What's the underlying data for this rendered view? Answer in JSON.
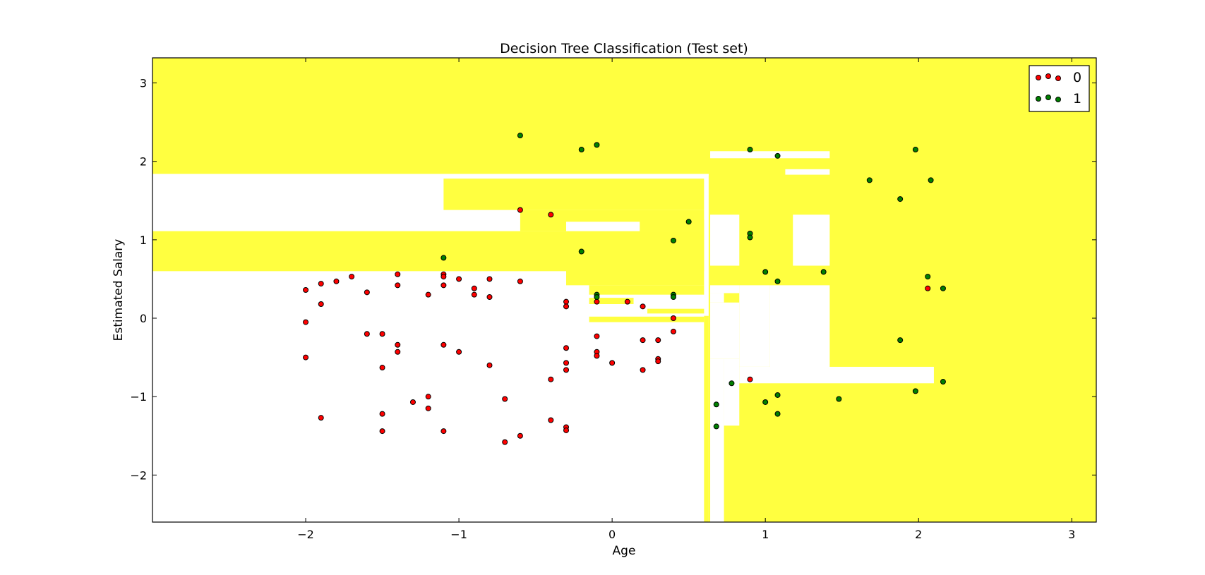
{
  "chart_data": {
    "type": "scatter",
    "title": "Decision Tree Classification (Test set)",
    "xlabel": "Age",
    "ylabel": "Estimated Salary",
    "xlim": [
      -3.0,
      3.16
    ],
    "ylim": [
      -2.6,
      3.32
    ],
    "xticks": [
      -2,
      -1,
      0,
      1,
      2,
      3
    ],
    "xtick_labels": [
      "−2",
      "−1",
      "0",
      "1",
      "2",
      "3"
    ],
    "yticks": [
      -2,
      -1,
      0,
      1,
      2,
      3
    ],
    "ytick_labels": [
      "−2",
      "−1",
      "0",
      "1",
      "2",
      "3"
    ],
    "grid": false,
    "legend_position": "top-right",
    "background_regions": {
      "class_0_color": "#ffffff",
      "class_1_color": "#ffff40",
      "class_1_rects": [
        [
          -3.0,
          3.16,
          1.84,
          3.32
        ],
        [
          -3.0,
          0.6,
          0.6,
          1.11
        ],
        [
          -1.1,
          0.6,
          1.38,
          1.78
        ],
        [
          -0.6,
          0.6,
          1.11,
          1.38
        ],
        [
          -0.3,
          0.6,
          1.11,
          1.26
        ],
        [
          -0.3,
          0.6,
          0.42,
          1.11
        ],
        [
          -0.15,
          0.6,
          0.3,
          0.42
        ],
        [
          -0.15,
          0.14,
          0.18,
          0.26
        ],
        [
          0.23,
          0.6,
          0.06,
          0.12
        ],
        [
          -0.15,
          0.6,
          -0.05,
          0.02
        ],
        [
          0.6,
          3.16,
          1.84,
          2.2
        ],
        [
          0.63,
          3.16,
          -2.6,
          1.84
        ],
        [
          0.6,
          0.63,
          -2.6,
          0.03
        ]
      ],
      "class_0_rects": [
        [
          -3.0,
          0.63,
          1.82,
          1.84
        ],
        [
          -0.3,
          0.18,
          1.11,
          1.23
        ],
        [
          0.64,
          1.42,
          2.04,
          2.13
        ],
        [
          1.13,
          1.42,
          1.83,
          1.9
        ],
        [
          0.64,
          0.83,
          0.67,
          1.32
        ],
        [
          1.18,
          1.42,
          0.67,
          1.32
        ],
        [
          0.64,
          0.83,
          0.32,
          0.42
        ],
        [
          0.64,
          0.73,
          0.2,
          0.32
        ],
        [
          0.64,
          0.83,
          -0.52,
          0.2
        ],
        [
          0.83,
          1.03,
          -0.62,
          0.42
        ],
        [
          1.03,
          1.42,
          -0.72,
          0.42
        ],
        [
          0.83,
          2.1,
          -0.83,
          -0.62
        ],
        [
          0.64,
          0.73,
          -2.6,
          -0.52
        ],
        [
          0.73,
          0.83,
          -1.37,
          -0.52
        ]
      ]
    },
    "series": [
      {
        "name": "0",
        "color": "#ff0000",
        "points": [
          [
            -2.0,
            0.36
          ],
          [
            -2.0,
            -0.05
          ],
          [
            -2.0,
            -0.5
          ],
          [
            -1.9,
            0.44
          ],
          [
            -1.9,
            0.18
          ],
          [
            -1.9,
            -1.27
          ],
          [
            -1.8,
            0.47
          ],
          [
            -1.7,
            0.53
          ],
          [
            -1.6,
            0.33
          ],
          [
            -1.6,
            -0.2
          ],
          [
            -1.5,
            -0.2
          ],
          [
            -1.5,
            -0.63
          ],
          [
            -1.5,
            -1.22
          ],
          [
            -1.5,
            -1.44
          ],
          [
            -1.4,
            0.56
          ],
          [
            -1.4,
            0.42
          ],
          [
            -1.4,
            -0.34
          ],
          [
            -1.4,
            -0.43
          ],
          [
            -1.3,
            -1.07
          ],
          [
            -1.2,
            0.3
          ],
          [
            -1.2,
            -1.0
          ],
          [
            -1.2,
            -1.15
          ],
          [
            -1.1,
            0.56
          ],
          [
            -1.1,
            0.53
          ],
          [
            -1.1,
            0.42
          ],
          [
            -1.1,
            -0.34
          ],
          [
            -1.1,
            -1.44
          ],
          [
            -1.0,
            0.5
          ],
          [
            -1.0,
            -0.43
          ],
          [
            -0.9,
            0.38
          ],
          [
            -0.9,
            0.3
          ],
          [
            -0.8,
            0.5
          ],
          [
            -0.8,
            0.27
          ],
          [
            -0.8,
            -0.6
          ],
          [
            -0.7,
            -1.03
          ],
          [
            -0.7,
            -1.58
          ],
          [
            -0.6,
            1.38
          ],
          [
            -0.6,
            0.47
          ],
          [
            -0.6,
            -1.5
          ],
          [
            -0.4,
            1.32
          ],
          [
            -0.4,
            -0.78
          ],
          [
            -0.4,
            -1.3
          ],
          [
            -0.3,
            0.21
          ],
          [
            -0.3,
            0.15
          ],
          [
            -0.3,
            -0.38
          ],
          [
            -0.3,
            -0.57
          ],
          [
            -0.3,
            -0.66
          ],
          [
            -0.3,
            -1.39
          ],
          [
            -0.3,
            -1.43
          ],
          [
            -0.1,
            0.21
          ],
          [
            -0.1,
            -0.23
          ],
          [
            -0.1,
            -0.43
          ],
          [
            -0.1,
            -0.48
          ],
          [
            0.0,
            -0.57
          ],
          [
            0.1,
            0.21
          ],
          [
            0.2,
            0.15
          ],
          [
            0.2,
            -0.28
          ],
          [
            0.2,
            -0.66
          ],
          [
            0.3,
            -0.28
          ],
          [
            0.3,
            -0.52
          ],
          [
            0.3,
            -0.55
          ],
          [
            0.4,
            0.0
          ],
          [
            0.4,
            -0.17
          ],
          [
            0.9,
            -0.78
          ],
          [
            2.06,
            0.38
          ]
        ]
      },
      {
        "name": "1",
        "color": "#008000",
        "points": [
          [
            -0.6,
            2.33
          ],
          [
            -0.2,
            2.15
          ],
          [
            -0.1,
            2.21
          ],
          [
            -0.2,
            0.85
          ],
          [
            -1.1,
            0.77
          ],
          [
            -0.1,
            0.3
          ],
          [
            -0.1,
            0.27
          ],
          [
            0.4,
            0.99
          ],
          [
            0.4,
            0.3
          ],
          [
            0.4,
            0.27
          ],
          [
            0.5,
            1.23
          ],
          [
            0.9,
            2.15
          ],
          [
            1.08,
            2.07
          ],
          [
            0.9,
            1.08
          ],
          [
            0.9,
            1.03
          ],
          [
            1.0,
            0.59
          ],
          [
            1.08,
            0.47
          ],
          [
            1.38,
            0.59
          ],
          [
            1.68,
            1.76
          ],
          [
            1.88,
            1.52
          ],
          [
            1.98,
            2.15
          ],
          [
            2.08,
            1.76
          ],
          [
            2.06,
            0.53
          ],
          [
            2.16,
            0.38
          ],
          [
            1.88,
            -0.28
          ],
          [
            2.16,
            -0.81
          ],
          [
            1.98,
            -0.93
          ],
          [
            1.48,
            -1.03
          ],
          [
            1.08,
            -0.98
          ],
          [
            1.0,
            -1.07
          ],
          [
            1.08,
            -1.22
          ],
          [
            0.78,
            -0.83
          ],
          [
            0.68,
            -1.1
          ],
          [
            0.68,
            -1.38
          ]
        ]
      }
    ]
  }
}
